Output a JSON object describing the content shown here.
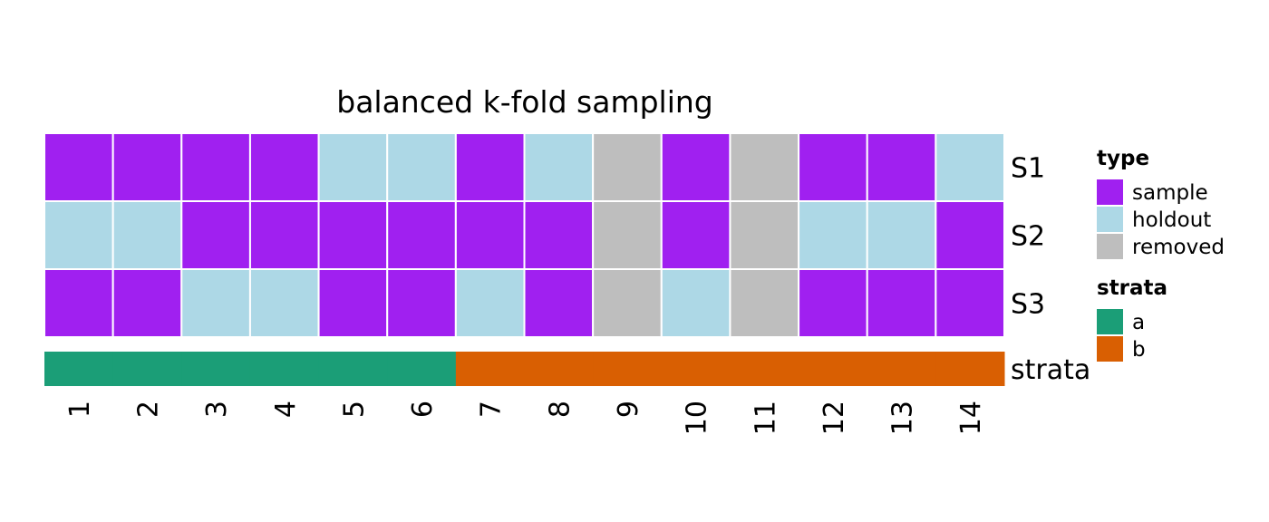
{
  "chart_data": {
    "type": "heatmap",
    "title": "balanced k-fold sampling",
    "columns": [
      "1",
      "2",
      "3",
      "4",
      "5",
      "6",
      "7",
      "8",
      "9",
      "10",
      "11",
      "12",
      "13",
      "14"
    ],
    "rows": [
      {
        "label": "S1",
        "values": [
          "sample",
          "sample",
          "sample",
          "sample",
          "holdout",
          "holdout",
          "sample",
          "holdout",
          "removed",
          "sample",
          "removed",
          "sample",
          "sample",
          "holdout"
        ]
      },
      {
        "label": "S2",
        "values": [
          "holdout",
          "holdout",
          "sample",
          "sample",
          "sample",
          "sample",
          "sample",
          "sample",
          "removed",
          "sample",
          "removed",
          "holdout",
          "holdout",
          "sample"
        ]
      },
      {
        "label": "S3",
        "values": [
          "sample",
          "sample",
          "holdout",
          "holdout",
          "sample",
          "sample",
          "holdout",
          "sample",
          "removed",
          "holdout",
          "removed",
          "sample",
          "sample",
          "sample"
        ]
      }
    ],
    "strata_row": {
      "label": "strata",
      "values": [
        "a",
        "a",
        "a",
        "a",
        "a",
        "a",
        "b",
        "b",
        "b",
        "b",
        "b",
        "b",
        "b",
        "b"
      ]
    },
    "legends": [
      {
        "title": "type",
        "items": [
          {
            "key": "sample",
            "label": "sample",
            "color": "#A020F0"
          },
          {
            "key": "holdout",
            "label": "holdout",
            "color": "#ADD8E6"
          },
          {
            "key": "removed",
            "label": "removed",
            "color": "#BEBEBE"
          }
        ]
      },
      {
        "title": "strata",
        "items": [
          {
            "key": "a",
            "label": "a",
            "color": "#1B9E77"
          },
          {
            "key": "b",
            "label": "b",
            "color": "#D95F02"
          }
        ]
      }
    ],
    "legend_position": "right",
    "grid": false
  }
}
